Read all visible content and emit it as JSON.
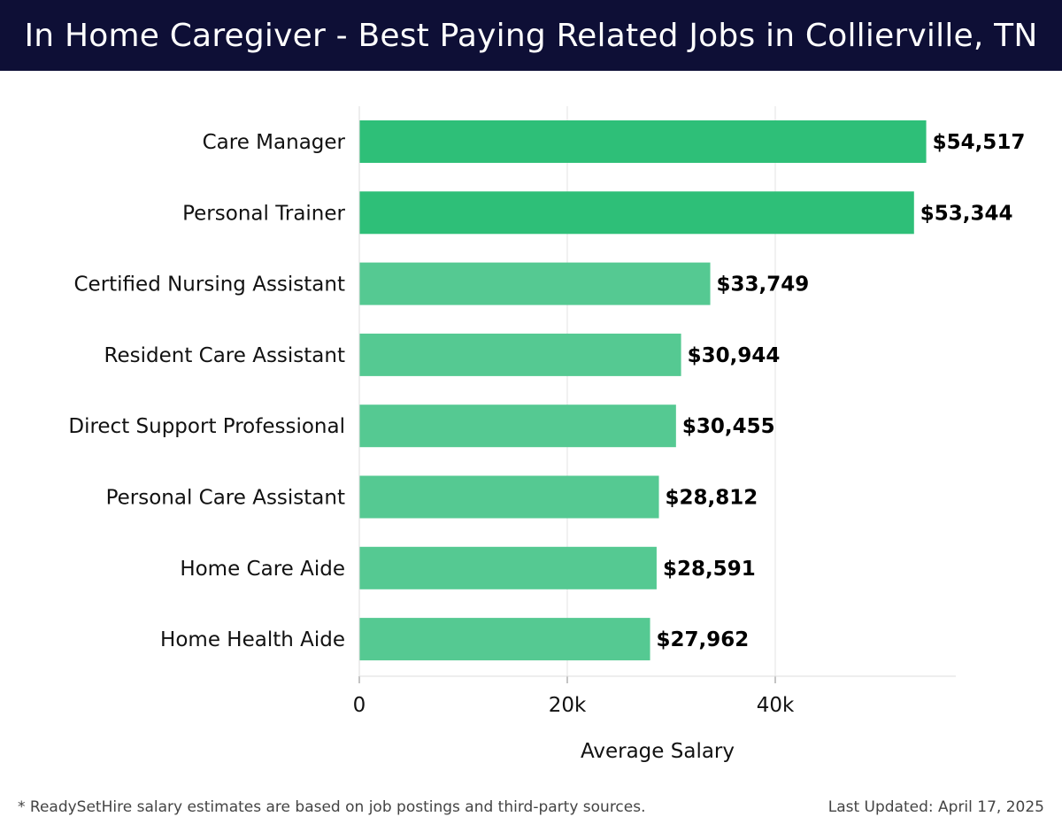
{
  "header": {
    "title": "In Home Caregiver - Best Paying Related Jobs in Collierville, TN"
  },
  "chart_data": {
    "type": "bar",
    "orientation": "horizontal",
    "categories": [
      "Care Manager",
      "Personal Trainer",
      "Certified Nursing Assistant",
      "Resident Care Assistant",
      "Direct Support Professional",
      "Personal Care Assistant",
      "Home Care Aide",
      "Home Health Aide"
    ],
    "values": [
      54517,
      53344,
      33749,
      30944,
      30455,
      28812,
      28591,
      27962
    ],
    "value_labels": [
      "$54,517",
      "$53,344",
      "$33,749",
      "$30,944",
      "$30,455",
      "$28,812",
      "$28,591",
      "$27,962"
    ],
    "xlabel": "Average Salary",
    "ylabel": "",
    "xlim": [
      0,
      57500
    ],
    "x_ticks": [
      0,
      20000,
      40000
    ],
    "x_tick_labels": [
      "0",
      "20k",
      "40k"
    ],
    "grid": "vertical",
    "colors": {
      "top_bar": "#2ebf78",
      "bar": "#55c992"
    },
    "highlight_top_n": 2
  },
  "footer": {
    "note": "* ReadySetHire salary estimates are based on job postings and third-party sources.",
    "updated": "Last Updated: April 17, 2025"
  }
}
